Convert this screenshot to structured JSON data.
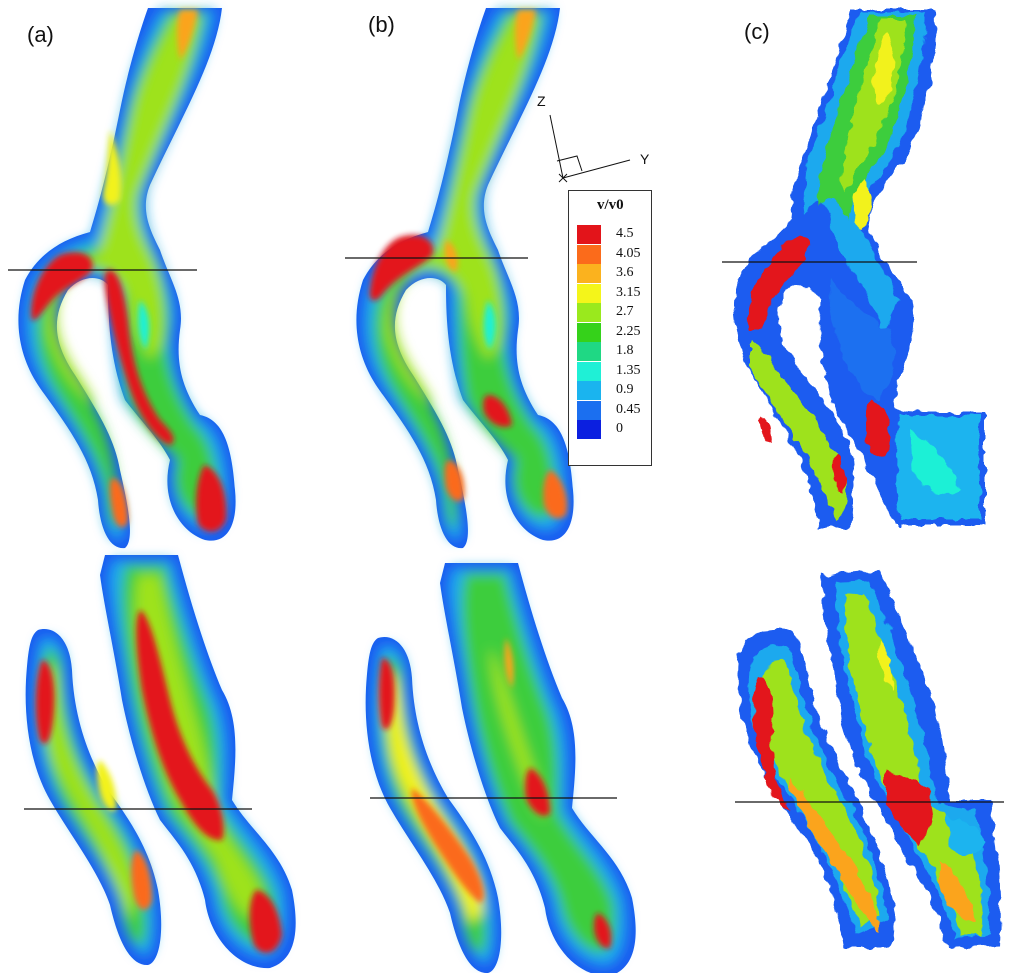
{
  "panels": [
    {
      "label": "(a)"
    },
    {
      "label": "(b)"
    },
    {
      "label": "(c)"
    }
  ],
  "axes": {
    "z": "Z",
    "y": "Y"
  },
  "legend": {
    "title": "v/v0",
    "levels": [
      {
        "value": "4.5",
        "color": "#e3141a"
      },
      {
        "value": "4.05",
        "color": "#fb6b1b"
      },
      {
        "value": "3.6",
        "color": "#fbb21e"
      },
      {
        "value": "3.15",
        "color": "#f4f51a"
      },
      {
        "value": "2.7",
        "color": "#9ae91d"
      },
      {
        "value": "2.25",
        "color": "#35d21a"
      },
      {
        "value": "1.8",
        "color": "#1fd884"
      },
      {
        "value": "1.35",
        "color": "#1ff0d6"
      },
      {
        "value": "0.9",
        "color": "#1ab4ef"
      },
      {
        "value": "0.45",
        "color": "#1b6ff0"
      },
      {
        "value": "0",
        "color": "#0b1fe0"
      }
    ]
  },
  "colors": {
    "edge": "#1b5cf0",
    "outer": "#1aa9ee",
    "mid": "#3ccd3c",
    "core_green": "#9ee21d",
    "core_yellow": "#f2f21a",
    "core_orange": "#fba41f",
    "core_red": "#e3141a",
    "line": "#111111"
  }
}
